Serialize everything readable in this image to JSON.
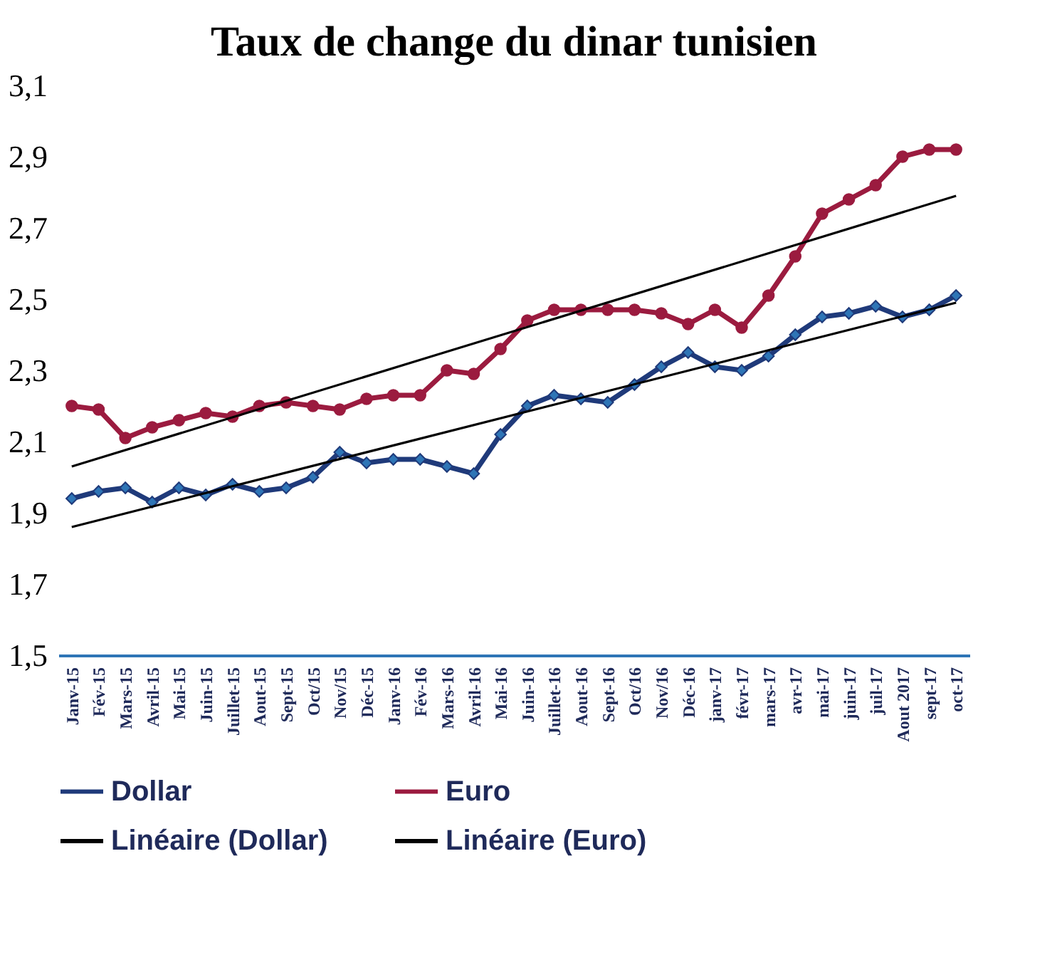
{
  "chart_data": {
    "type": "line",
    "title": "Taux de change du dinar tunisien",
    "categories": [
      "Janv-15",
      "Fév-15",
      "Mars-15",
      "Avril-15",
      "Mai-15",
      "Juin-15",
      "Juillet-15",
      "Aout-15",
      "Sept-15",
      "Oct/15",
      "Nov/15",
      "Déc-15",
      "Janv-16",
      "Fév-16",
      "Mars-16",
      "Avril-16",
      "Mai-16",
      "Juin-16",
      "Juillet-16",
      "Aout-16",
      "Sept-16",
      "Oct/16",
      "Nov/16",
      "Déc-16",
      "janv-17",
      "févr-17",
      "mars-17",
      "avr-17",
      "mai-17",
      "juin-17",
      "juil-17",
      "Aout 2017",
      "sept-17",
      "oct-17"
    ],
    "series": [
      {
        "name": "Dollar",
        "color": "#1f3a7a",
        "marker": "diamond",
        "values": [
          1.94,
          1.96,
          1.97,
          1.93,
          1.97,
          1.95,
          1.98,
          1.96,
          1.97,
          2.0,
          2.07,
          2.04,
          2.05,
          2.05,
          2.03,
          2.01,
          2.12,
          2.2,
          2.23,
          2.22,
          2.21,
          2.26,
          2.31,
          2.35,
          2.31,
          2.3,
          2.34,
          2.4,
          2.45,
          2.46,
          2.48,
          2.45,
          2.47,
          2.51
        ]
      },
      {
        "name": "Euro",
        "color": "#9b1b3f",
        "marker": "circle",
        "values": [
          2.2,
          2.19,
          2.11,
          2.14,
          2.16,
          2.18,
          2.17,
          2.2,
          2.21,
          2.2,
          2.19,
          2.22,
          2.23,
          2.23,
          2.3,
          2.29,
          2.36,
          2.44,
          2.47,
          2.47,
          2.47,
          2.47,
          2.46,
          2.43,
          2.47,
          2.42,
          2.51,
          2.62,
          2.74,
          2.78,
          2.82,
          2.9,
          2.92,
          2.92
        ]
      },
      {
        "name": "Linéaire (Dollar)",
        "color": "#000000",
        "marker": "none",
        "x": [
          "Janv-15",
          "oct-17"
        ],
        "values": [
          1.86,
          2.49
        ]
      },
      {
        "name": "Linéaire (Euro)",
        "color": "#000000",
        "marker": "none",
        "x": [
          "Janv-15",
          "oct-17"
        ],
        "values": [
          2.03,
          2.79
        ]
      }
    ],
    "ylim": [
      1.5,
      3.1
    ],
    "yticks": [
      {
        "value": 1.5,
        "label": "1,5"
      },
      {
        "value": 1.7,
        "label": "1,7"
      },
      {
        "value": 1.9,
        "label": "1,9"
      },
      {
        "value": 2.1,
        "label": "2,1"
      },
      {
        "value": 2.3,
        "label": "2,3"
      },
      {
        "value": 2.5,
        "label": "2,5"
      },
      {
        "value": 2.7,
        "label": "2,7"
      },
      {
        "value": 2.9,
        "label": "2,9"
      },
      {
        "value": 3.1,
        "label": "3,1"
      }
    ],
    "legend": "bottom"
  }
}
